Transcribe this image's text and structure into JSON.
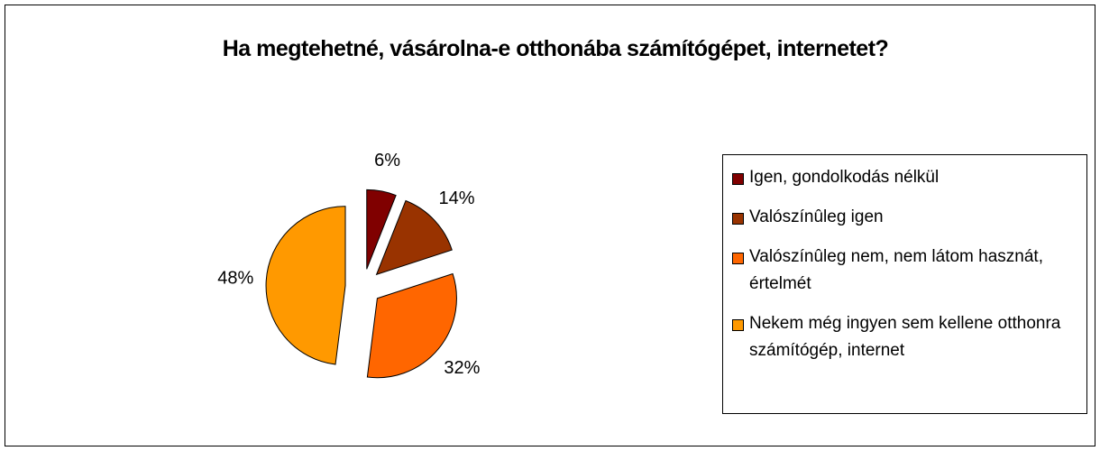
{
  "chart_data": {
    "type": "pie",
    "title": "Ha megtehetné, vásárolna-e otthonába számítógépet, internetet?",
    "categories": [
      "Igen, gondolkodás nélkül",
      "Valószínûleg igen",
      "Valószínûleg nem, nem látom hasznát, értelmét",
      "Nekem még ingyen sem kellene otthonra számítógép, internet"
    ],
    "values": [
      6,
      14,
      32,
      48
    ],
    "value_labels": [
      "6%",
      "14%",
      "32%",
      "48%"
    ],
    "colors": [
      "#800000",
      "#993300",
      "#ff6600",
      "#ff9900"
    ],
    "legend": "right"
  }
}
